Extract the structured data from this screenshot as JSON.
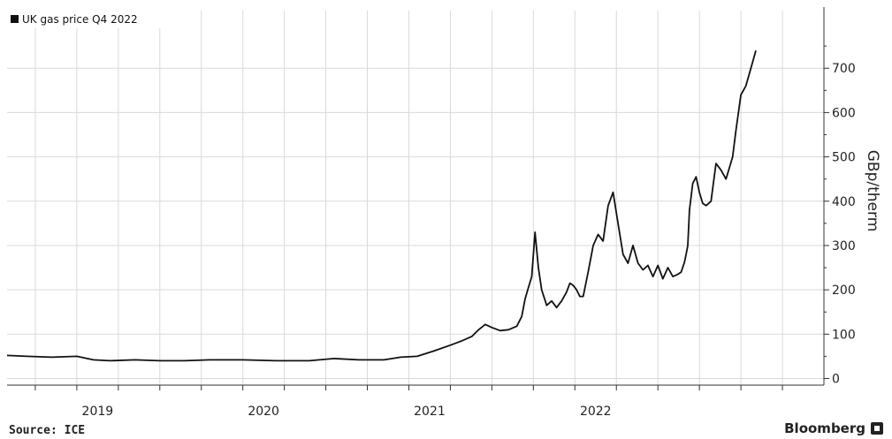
{
  "chart_data": {
    "type": "line",
    "title": "",
    "xlabel": "",
    "ylabel": "GBp/therm",
    "ylim": [
      -15,
      830
    ],
    "yticks": [
      0,
      100,
      200,
      300,
      400,
      500,
      600,
      700
    ],
    "x_tick_labels": [
      {
        "label": "2019",
        "x": 2019.0
      },
      {
        "label": "2020",
        "x": 2020.0
      },
      {
        "label": "2021",
        "x": 2021.0
      },
      {
        "label": "2022",
        "x": 2022.0
      }
    ],
    "xlim": [
      2018.58,
      2023.5
    ],
    "grid": true,
    "legend_position": "top-left",
    "series": [
      {
        "name": "UK gas price Q4 2022",
        "color": "#111111",
        "x": [
          2018.58,
          2018.7,
          2018.85,
          2019.0,
          2019.1,
          2019.2,
          2019.35,
          2019.5,
          2019.65,
          2019.8,
          2020.0,
          2020.2,
          2020.4,
          2020.55,
          2020.7,
          2020.85,
          2020.95,
          2021.05,
          2021.15,
          2021.25,
          2021.32,
          2021.38,
          2021.42,
          2021.46,
          2021.5,
          2021.55,
          2021.6,
          2021.65,
          2021.68,
          2021.7,
          2021.72,
          2021.74,
          2021.76,
          2021.78,
          2021.8,
          2021.83,
          2021.86,
          2021.89,
          2021.92,
          2021.95,
          2021.97,
          2021.99,
          2022.01,
          2022.03,
          2022.05,
          2022.08,
          2022.11,
          2022.14,
          2022.17,
          2022.2,
          2022.23,
          2022.26,
          2022.29,
          2022.32,
          2022.35,
          2022.38,
          2022.41,
          2022.44,
          2022.47,
          2022.5,
          2022.53,
          2022.56,
          2022.59,
          2022.62,
          2022.64,
          2022.66,
          2022.67,
          2022.68,
          2022.69,
          2022.71,
          2022.73,
          2022.75,
          2022.77,
          2022.79,
          2022.82,
          2022.85,
          2022.88,
          2022.91,
          2022.93,
          2022.95,
          2022.97,
          2023.0,
          2023.03,
          2023.06,
          2023.09
        ],
        "y": [
          52,
          50,
          48,
          50,
          42,
          40,
          42,
          40,
          40,
          42,
          42,
          40,
          40,
          45,
          42,
          42,
          48,
          50,
          62,
          75,
          85,
          95,
          110,
          122,
          115,
          108,
          110,
          118,
          140,
          180,
          205,
          230,
          330,
          250,
          200,
          165,
          175,
          160,
          175,
          195,
          215,
          210,
          200,
          185,
          185,
          240,
          300,
          325,
          310,
          390,
          420,
          350,
          280,
          260,
          300,
          260,
          245,
          255,
          230,
          255,
          225,
          250,
          230,
          235,
          240,
          262,
          280,
          300,
          380,
          440,
          455,
          420,
          395,
          390,
          400,
          485,
          470,
          450,
          475,
          500,
          560,
          640,
          660,
          700,
          740
        ]
      }
    ]
  },
  "source": "Source: ICE",
  "brand": "Bloomberg",
  "icons": {
    "brand": "bloomberg-logo-icon",
    "legend": "legend-swatch-icon"
  }
}
